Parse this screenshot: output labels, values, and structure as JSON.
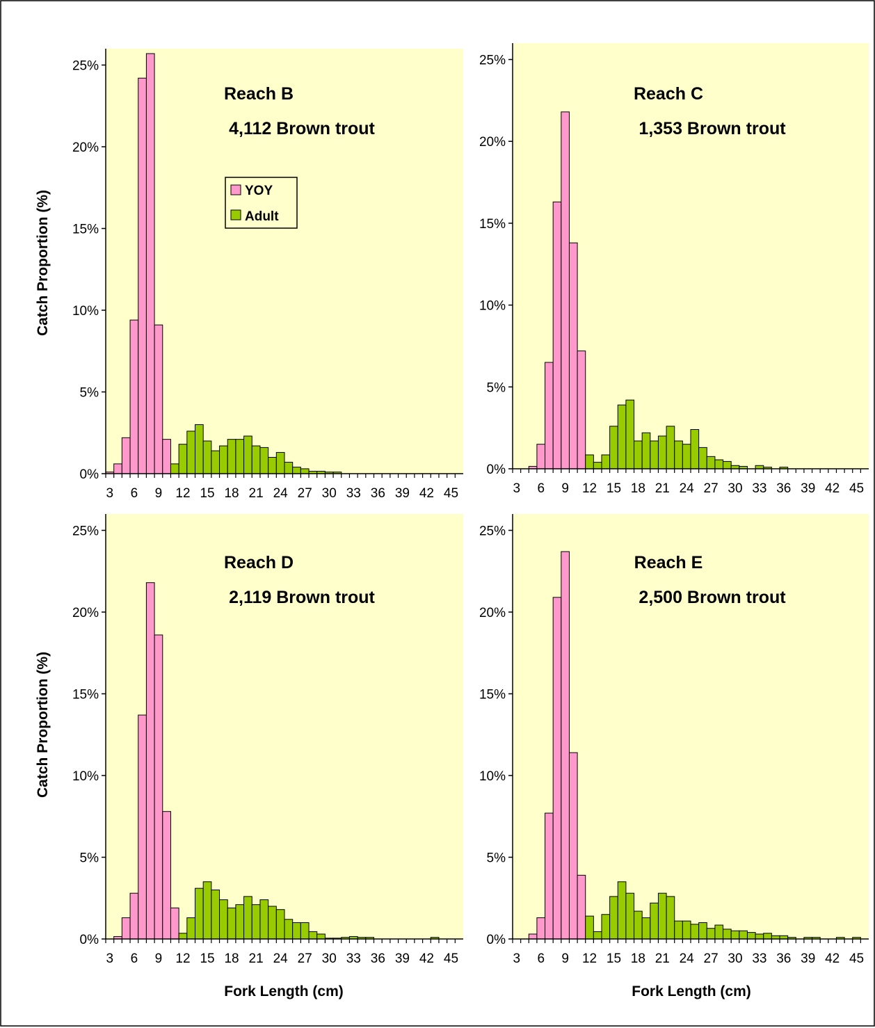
{
  "figure": {
    "ylabel": "Catch Proportion (%)",
    "xlabel": "Fork Length (cm)",
    "legend": {
      "items": [
        {
          "name": "YOY",
          "color": "#ff99cc"
        },
        {
          "name": "Adult",
          "color": "#99cc00"
        }
      ],
      "placement": "top-center (Reach B panel)"
    },
    "colors": {
      "plot_bg": "#ffffcc",
      "yoy": "#ff99cc",
      "adult": "#99cc00",
      "edge": "#000000"
    }
  },
  "chart_data": [
    {
      "type": "bar",
      "title": "Reach B",
      "subtitle": "4,112 Brown trout",
      "xlabel": "",
      "ylabel": "Catch Proportion (%)",
      "ylim": [
        0,
        26
      ],
      "yticks": [
        "0%",
        "5%",
        "10%",
        "15%",
        "20%",
        "25%"
      ],
      "xticks": [
        "3",
        "6",
        "9",
        "12",
        "15",
        "18",
        "21",
        "24",
        "27",
        "30",
        "33",
        "36",
        "39",
        "42",
        "45"
      ],
      "x": [
        3,
        4,
        5,
        6,
        7,
        8,
        9,
        10,
        11,
        12,
        13,
        14,
        15,
        16,
        17,
        18,
        19,
        20,
        21,
        22,
        23,
        24,
        25,
        26,
        27,
        28,
        29,
        30,
        31
      ],
      "series": [
        {
          "name": "YOY",
          "values": [
            0.1,
            0.6,
            2.2,
            9.4,
            24.2,
            25.7,
            9.1,
            2.1,
            0,
            0,
            0,
            0,
            0,
            0,
            0,
            0,
            0,
            0,
            0,
            0,
            0,
            0,
            0,
            0,
            0,
            0,
            0,
            0,
            0
          ]
        },
        {
          "name": "Adult",
          "values": [
            0,
            0,
            0,
            0,
            0,
            0,
            0,
            0,
            0.6,
            1.8,
            2.6,
            3.0,
            2.0,
            1.4,
            1.7,
            2.1,
            2.1,
            2.3,
            1.7,
            1.6,
            1.0,
            1.3,
            0.7,
            0.4,
            0.3,
            0.15,
            0.15,
            0.1,
            0.1
          ]
        }
      ]
    },
    {
      "type": "bar",
      "title": "Reach C",
      "subtitle": "1,353 Brown trout",
      "xlabel": "",
      "ylabel": "",
      "ylim": [
        0,
        26
      ],
      "yticks": [
        "0%",
        "5%",
        "10%",
        "15%",
        "20%",
        "25%"
      ],
      "xticks": [
        "3",
        "6",
        "9",
        "12",
        "15",
        "18",
        "21",
        "24",
        "27",
        "30",
        "33",
        "36",
        "39",
        "42",
        "45"
      ],
      "x": [
        3,
        4,
        5,
        6,
        7,
        8,
        9,
        10,
        11,
        12,
        13,
        14,
        15,
        16,
        17,
        18,
        19,
        20,
        21,
        22,
        23,
        24,
        25,
        26,
        27,
        28,
        29,
        30,
        31,
        32,
        33,
        34,
        35,
        36
      ],
      "series": [
        {
          "name": "YOY",
          "values": [
            0,
            0,
            0.15,
            1.5,
            6.5,
            16.3,
            21.8,
            13.8,
            7.2,
            0,
            0,
            0,
            0,
            0,
            0,
            0,
            0,
            0,
            0,
            0,
            0,
            0,
            0,
            0,
            0,
            0,
            0,
            0,
            0,
            0,
            0,
            0,
            0,
            0
          ]
        },
        {
          "name": "Adult",
          "values": [
            0,
            0,
            0,
            0,
            0,
            0,
            0,
            0,
            0,
            0.85,
            0.4,
            0.85,
            2.6,
            3.9,
            4.2,
            1.7,
            2.2,
            1.7,
            2.0,
            2.6,
            1.7,
            1.5,
            2.4,
            1.3,
            0.75,
            0.55,
            0.45,
            0.2,
            0.15,
            0,
            0.2,
            0.1,
            0,
            0.1
          ]
        }
      ]
    },
    {
      "type": "bar",
      "title": "Reach D",
      "subtitle": "2,119 Brown trout",
      "xlabel": "Fork Length (cm)",
      "ylabel": "Catch Proportion (%)",
      "ylim": [
        0,
        26
      ],
      "yticks": [
        "0%",
        "5%",
        "10%",
        "15%",
        "20%",
        "25%"
      ],
      "xticks": [
        "3",
        "6",
        "9",
        "12",
        "15",
        "18",
        "21",
        "24",
        "27",
        "30",
        "33",
        "36",
        "39",
        "42",
        "45"
      ],
      "x": [
        3,
        4,
        5,
        6,
        7,
        8,
        9,
        10,
        11,
        12,
        13,
        14,
        15,
        16,
        17,
        18,
        19,
        20,
        21,
        22,
        23,
        24,
        25,
        26,
        27,
        28,
        29,
        30,
        31,
        32,
        33,
        34,
        35,
        36,
        37,
        38,
        39,
        40,
        41,
        42,
        43
      ],
      "series": [
        {
          "name": "YOY",
          "values": [
            0,
            0.15,
            1.3,
            2.8,
            13.7,
            21.8,
            18.6,
            7.8,
            1.9,
            0,
            0,
            0,
            0,
            0,
            0,
            0,
            0,
            0,
            0,
            0,
            0,
            0,
            0,
            0,
            0,
            0,
            0,
            0,
            0,
            0,
            0,
            0,
            0,
            0,
            0,
            0,
            0,
            0,
            0,
            0,
            0
          ]
        },
        {
          "name": "Adult",
          "values": [
            0,
            0,
            0,
            0,
            0,
            0,
            0,
            0,
            0,
            0.35,
            1.3,
            3.1,
            3.5,
            3.0,
            2.4,
            1.9,
            2.1,
            2.6,
            2.1,
            2.4,
            2.0,
            1.8,
            1.2,
            1.0,
            1.0,
            0.45,
            0.3,
            0.05,
            0.05,
            0.1,
            0.15,
            0.1,
            0.1,
            0,
            0,
            0,
            0,
            0,
            0,
            0,
            0.1
          ]
        }
      ]
    },
    {
      "type": "bar",
      "title": "Reach E",
      "subtitle": "2,500 Brown trout",
      "xlabel": "Fork Length (cm)",
      "ylabel": "",
      "ylim": [
        0,
        26
      ],
      "yticks": [
        "0%",
        "5%",
        "10%",
        "15%",
        "20%",
        "25%"
      ],
      "xticks": [
        "3",
        "6",
        "9",
        "12",
        "15",
        "18",
        "21",
        "24",
        "27",
        "30",
        "33",
        "36",
        "39",
        "42",
        "45"
      ],
      "x": [
        3,
        4,
        5,
        6,
        7,
        8,
        9,
        10,
        11,
        12,
        13,
        14,
        15,
        16,
        17,
        18,
        19,
        20,
        21,
        22,
        23,
        24,
        25,
        26,
        27,
        28,
        29,
        30,
        31,
        32,
        33,
        34,
        35,
        36,
        37,
        38,
        39,
        40,
        41,
        42,
        43,
        44,
        45
      ],
      "series": [
        {
          "name": "YOY",
          "values": [
            0,
            0,
            0.3,
            1.3,
            7.7,
            20.9,
            23.7,
            11.4,
            3.9,
            0,
            0,
            0,
            0,
            0,
            0,
            0,
            0,
            0,
            0,
            0,
            0,
            0,
            0,
            0,
            0,
            0,
            0,
            0,
            0,
            0,
            0,
            0,
            0,
            0,
            0,
            0,
            0,
            0,
            0,
            0,
            0,
            0,
            0
          ]
        },
        {
          "name": "Adult",
          "values": [
            0,
            0,
            0,
            0,
            0,
            0,
            0,
            0,
            0,
            1.4,
            0.45,
            1.5,
            2.6,
            3.5,
            2.8,
            1.7,
            1.3,
            2.2,
            2.8,
            2.6,
            1.1,
            1.1,
            0.9,
            1.0,
            0.65,
            0.85,
            0.6,
            0.5,
            0.5,
            0.4,
            0.3,
            0.35,
            0.2,
            0.2,
            0.1,
            0,
            0.1,
            0.1,
            0,
            0,
            0.1,
            0,
            0.1
          ]
        }
      ]
    }
  ]
}
